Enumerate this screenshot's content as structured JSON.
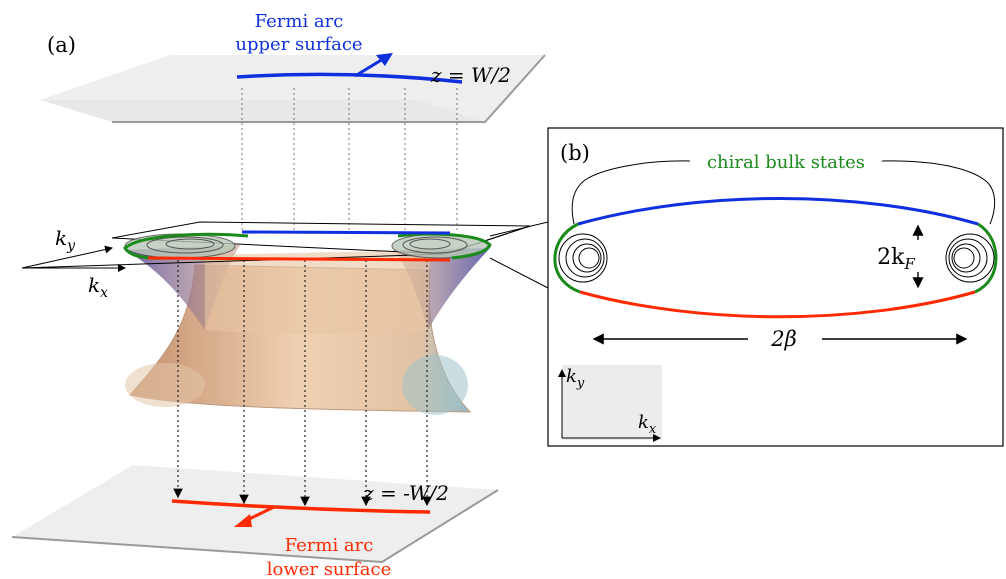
{
  "panel_a": {
    "label": "(a)",
    "top_plane": {
      "label": "z = W/2"
    },
    "bottom_plane": {
      "label": "z = -W/2"
    },
    "upper_arc": {
      "line1": "Fermi arc",
      "line2": "upper surface"
    },
    "lower_arc": {
      "line1": "Fermi arc",
      "line2": "lower surface"
    },
    "axes": {
      "ky": "k",
      "ky_sub": "y",
      "kx": "k",
      "kx_sub": "x"
    }
  },
  "panel_b": {
    "label": "(b)",
    "chiral_label": "chiral bulk states",
    "kf_label": "2k",
    "kf_sub": "F",
    "beta_label": "2β",
    "axes": {
      "ky": "k",
      "ky_sub": "y",
      "kx": "k",
      "kx_sub": "x"
    }
  },
  "colors": {
    "upper_arc": "#1030e0",
    "lower_arc": "#ff2a00",
    "chiral": "#1a8a1a",
    "plane": "#eeeeee",
    "cone": "#d9b48e"
  }
}
